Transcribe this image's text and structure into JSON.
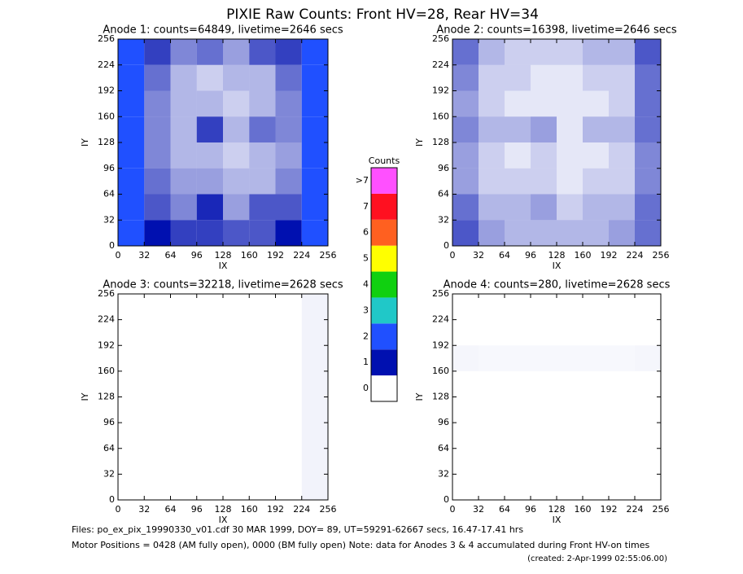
{
  "title": "PIXIE Raw Counts:  Front HV=28, Rear HV=34",
  "colorbar": {
    "title": "Counts",
    "ticks": [
      0,
      1,
      2,
      3,
      4,
      5,
      6,
      7,
      {
        "value": 8,
        "label": ">7"
      }
    ],
    "colors": [
      "#ffffff",
      "#0010b0",
      "#2050ff",
      "#20c8c8",
      "#10d010",
      "#ffff00",
      "#ff6020",
      "#ff1020",
      "#ff50ff"
    ]
  },
  "chart_data": [
    {
      "type": "heatmap",
      "title": "Anode 1: counts=64849, livetime=2646 secs",
      "xlabel": "IX",
      "ylabel": "IY",
      "xlim": [
        0,
        256
      ],
      "ylim": [
        0,
        256
      ],
      "xticks": [
        0,
        32,
        64,
        96,
        128,
        160,
        192,
        224,
        256
      ],
      "yticks": [
        0,
        32,
        64,
        96,
        128,
        160,
        192,
        224,
        256
      ],
      "z": [
        [
          2.0,
          0.8,
          0.5,
          0.6,
          0.4,
          0.7,
          0.8,
          2.2
        ],
        [
          1.8,
          0.6,
          0.3,
          0.2,
          0.3,
          0.3,
          0.6,
          2.0
        ],
        [
          1.6,
          0.5,
          0.3,
          0.3,
          0.2,
          0.3,
          0.5,
          1.8
        ],
        [
          1.8,
          0.5,
          0.3,
          0.8,
          0.3,
          0.6,
          0.5,
          1.9
        ],
        [
          1.6,
          0.5,
          0.3,
          0.3,
          0.2,
          0.3,
          0.4,
          1.7
        ],
        [
          1.7,
          0.6,
          0.4,
          0.4,
          0.3,
          0.3,
          0.5,
          1.8
        ],
        [
          2.0,
          0.7,
          0.5,
          0.9,
          0.4,
          0.7,
          0.7,
          2.0
        ],
        [
          2.2,
          1.0,
          0.8,
          0.8,
          0.7,
          0.7,
          1.0,
          2.2
        ]
      ]
    },
    {
      "type": "heatmap",
      "title": "Anode 2: counts=16398, livetime=2646 secs",
      "xlabel": "IX",
      "ylabel": "IY",
      "xlim": [
        0,
        256
      ],
      "ylim": [
        0,
        256
      ],
      "xticks": [
        0,
        32,
        64,
        96,
        128,
        160,
        192,
        224,
        256
      ],
      "yticks": [
        0,
        32,
        64,
        96,
        128,
        160,
        192,
        224,
        256
      ],
      "z": [
        [
          0.6,
          0.3,
          0.2,
          0.2,
          0.2,
          0.3,
          0.3,
          0.7
        ],
        [
          0.5,
          0.2,
          0.2,
          0.1,
          0.1,
          0.2,
          0.2,
          0.6
        ],
        [
          0.4,
          0.2,
          0.1,
          0.1,
          0.1,
          0.1,
          0.2,
          0.6
        ],
        [
          0.5,
          0.3,
          0.3,
          0.4,
          0.1,
          0.3,
          0.3,
          0.6
        ],
        [
          0.4,
          0.2,
          0.1,
          0.2,
          0.1,
          0.1,
          0.2,
          0.5
        ],
        [
          0.4,
          0.2,
          0.2,
          0.2,
          0.1,
          0.2,
          0.2,
          0.5
        ],
        [
          0.6,
          0.3,
          0.3,
          0.4,
          0.2,
          0.3,
          0.3,
          0.6
        ],
        [
          0.7,
          0.4,
          0.3,
          0.3,
          0.3,
          0.3,
          0.4,
          0.6
        ]
      ]
    },
    {
      "type": "heatmap",
      "title": "Anode 3: counts=32218, livetime=2628 secs",
      "xlabel": "IX",
      "ylabel": "IY",
      "xlim": [
        0,
        256
      ],
      "ylim": [
        0,
        256
      ],
      "xticks": [
        0,
        32,
        64,
        96,
        128,
        160,
        192,
        224,
        256
      ],
      "yticks": [
        0,
        32,
        64,
        96,
        128,
        160,
        192,
        224,
        256
      ],
      "z": [
        [
          0,
          0,
          0,
          0,
          0,
          0,
          0,
          0.05
        ],
        [
          0,
          0,
          0,
          0,
          0,
          0,
          0,
          0.05
        ],
        [
          0,
          0,
          0,
          0,
          0,
          0,
          0,
          0.05
        ],
        [
          0,
          0,
          0,
          0,
          0,
          0,
          0,
          0.05
        ],
        [
          0,
          0,
          0,
          0,
          0,
          0,
          0,
          0.05
        ],
        [
          0,
          0,
          0,
          0,
          0,
          0,
          0,
          0.05
        ],
        [
          0,
          0,
          0,
          0,
          0,
          0,
          0,
          0.05
        ],
        [
          0,
          0,
          0,
          0,
          0,
          0,
          0,
          0.05
        ]
      ]
    },
    {
      "type": "heatmap",
      "title": "Anode 4: counts=280, livetime=2628 secs",
      "xlabel": "IX",
      "ylabel": "IY",
      "xlim": [
        0,
        256
      ],
      "ylim": [
        0,
        256
      ],
      "xticks": [
        0,
        32,
        64,
        96,
        128,
        160,
        192,
        224,
        256
      ],
      "yticks": [
        0,
        32,
        64,
        96,
        128,
        160,
        192,
        224,
        256
      ],
      "z": [
        [
          0,
          0,
          0,
          0,
          0,
          0,
          0,
          0
        ],
        [
          0,
          0,
          0,
          0,
          0,
          0,
          0,
          0
        ],
        [
          0.04,
          0.03,
          0.03,
          0.03,
          0.03,
          0.03,
          0.03,
          0.04
        ],
        [
          0,
          0,
          0,
          0,
          0,
          0,
          0,
          0
        ],
        [
          0,
          0,
          0,
          0,
          0,
          0,
          0,
          0
        ],
        [
          0,
          0,
          0,
          0,
          0,
          0,
          0,
          0
        ],
        [
          0,
          0,
          0,
          0,
          0,
          0,
          0,
          0
        ],
        [
          0,
          0,
          0,
          0,
          0,
          0,
          0,
          0
        ]
      ]
    }
  ],
  "footer": [
    "Files: po_ex_pix_19990330_v01.cdf    30 MAR 1999, DOY= 89, UT=59291-62667 secs, 16.47-17.41 hrs",
    "Motor Positions = 0428 (AM fully open), 0000 (BM fully open)    Note: data for Anodes 3 & 4 accumulated during Front HV-on times",
    "(created:  2-Apr-1999 02:55:06.00)"
  ]
}
